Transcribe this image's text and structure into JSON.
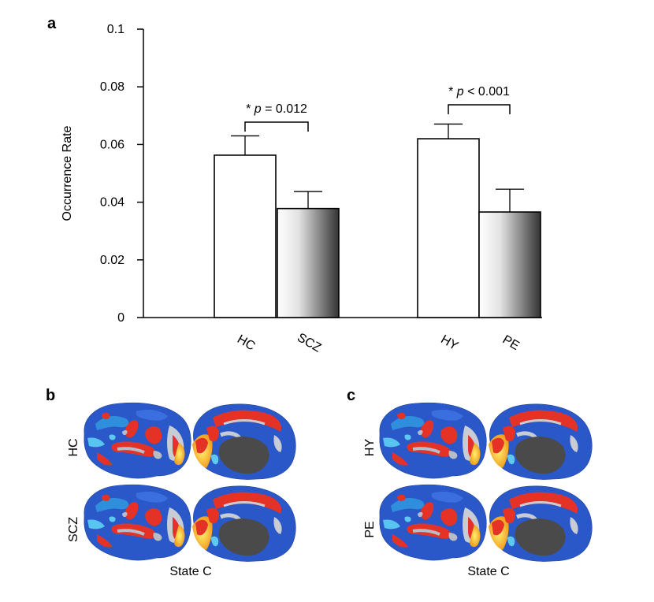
{
  "panels": {
    "a": "a",
    "b": "b",
    "c": "c"
  },
  "chart_data": {
    "type": "bar",
    "title": "",
    "xlabel": "",
    "ylabel": "Occurrence Rate",
    "ylim": [
      0,
      0.1
    ],
    "yticks": [
      0,
      0.02,
      0.04,
      0.06,
      0.08,
      0.1
    ],
    "ytick_labels": [
      "0",
      "0.02",
      "0.04",
      "0.06",
      "0.08",
      "0.1"
    ],
    "categories": [
      "HC",
      "SCZ",
      "HY",
      "PE"
    ],
    "values": [
      0.0563,
      0.0378,
      0.062,
      0.0366
    ],
    "errors": [
      0.0067,
      0.0059,
      0.0051,
      0.0079
    ],
    "bar_styles": [
      "white",
      "gradient",
      "white",
      "gradient"
    ],
    "significance": [
      {
        "pair": [
          "HC",
          "SCZ"
        ],
        "star": "*",
        "p_symbol": "p",
        "text": " = 0.012"
      },
      {
        "pair": [
          "HY",
          "PE"
        ],
        "star": "*",
        "p_symbol": "p",
        "text": " < 0.001"
      }
    ],
    "grid": false,
    "legend": "none"
  },
  "brain_panels": {
    "b": {
      "row_labels": [
        "HC",
        "SCZ"
      ],
      "caption": "State C"
    },
    "c": {
      "row_labels": [
        "HY",
        "PE"
      ],
      "caption": "State C"
    }
  },
  "colors": {
    "bar_edge": "#000000",
    "gradient_start": "#ffffff",
    "gradient_end": "#3a3a3a",
    "brain_blue": "#2a5bd0",
    "brain_red": "#e5322a",
    "brain_yellow": "#f5d020",
    "brain_cyan": "#5fc8f0",
    "brain_gray": "#b8bcc4",
    "medial_wall": "#4a4a4a"
  }
}
